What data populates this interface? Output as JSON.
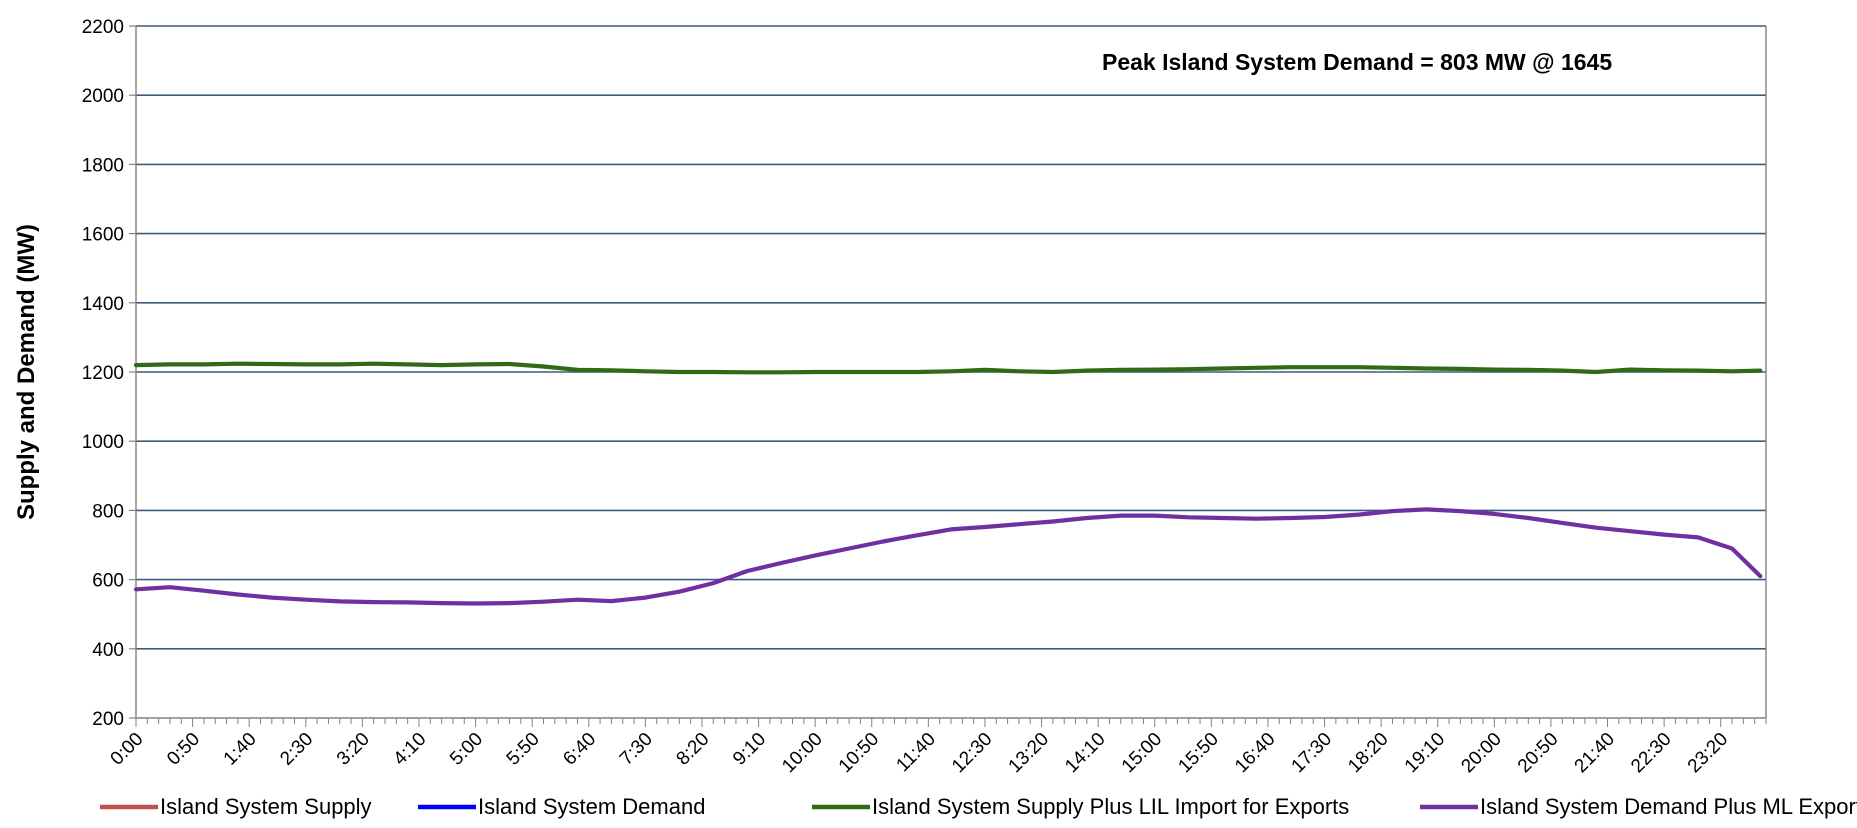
{
  "chart_data": {
    "type": "line",
    "title": "",
    "xlabel": "",
    "ylabel": "Supply and Demand (MW)",
    "ylim": [
      200,
      2200
    ],
    "yticks": [
      200,
      400,
      600,
      800,
      1000,
      1200,
      1400,
      1600,
      1800,
      2000,
      2200
    ],
    "xtick_labels": [
      "0:00",
      "0:50",
      "1:40",
      "2:30",
      "3:20",
      "4:10",
      "5:00",
      "5:50",
      "6:40",
      "7:30",
      "8:20",
      "9:10",
      "10:00",
      "10:50",
      "11:40",
      "12:30",
      "13:20",
      "14:10",
      "15:00",
      "15:50",
      "16:40",
      "17:30",
      "18:20",
      "19:10",
      "20:00",
      "20:50",
      "21:40",
      "22:30",
      "23:20"
    ],
    "x_unit_minutes": [
      0,
      30,
      60,
      90,
      120,
      150,
      180,
      210,
      240,
      270,
      300,
      330,
      360,
      390,
      420,
      450,
      480,
      510,
      540,
      570,
      600,
      630,
      660,
      690,
      720,
      750,
      780,
      810,
      840,
      870,
      900,
      930,
      960,
      990,
      1020,
      1050,
      1080,
      1110,
      1140,
      1170,
      1200,
      1230,
      1260,
      1290,
      1320,
      1350,
      1380,
      1410,
      1435
    ],
    "grid": "horizontal",
    "legend_position": "bottom",
    "annotation": "Peak Island System Demand = 803 MW @ 1645",
    "series": [
      {
        "name": "Island System Supply",
        "color": "#c0504d",
        "values": []
      },
      {
        "name": "Island System Demand",
        "color": "#0000ff",
        "values": []
      },
      {
        "name": "Island System Supply Plus LIL Import for Exports",
        "color": "#2e6b14",
        "values": [
          1220,
          1222,
          1222,
          1224,
          1223,
          1222,
          1222,
          1224,
          1222,
          1220,
          1222,
          1223,
          1216,
          1206,
          1205,
          1202,
          1200,
          1200,
          1199,
          1199,
          1200,
          1200,
          1200,
          1200,
          1202,
          1206,
          1202,
          1200,
          1204,
          1206,
          1207,
          1208,
          1210,
          1212,
          1214,
          1214,
          1214,
          1212,
          1210,
          1209,
          1207,
          1206,
          1204,
          1200,
          1207,
          1205,
          1204,
          1202,
          1204
        ]
      },
      {
        "name": "Island System Demand Plus ML Exports",
        "color": "#7030a0",
        "values": [
          572,
          578,
          568,
          557,
          548,
          542,
          537,
          535,
          534,
          532,
          531,
          532,
          536,
          542,
          538,
          548,
          565,
          590,
          625,
          648,
          670,
          690,
          710,
          728,
          745,
          752,
          760,
          768,
          778,
          785,
          785,
          780,
          778,
          776,
          778,
          781,
          788,
          798,
          803,
          798,
          790,
          778,
          764,
          750,
          740,
          730,
          722,
          690,
          610
        ]
      }
    ]
  }
}
